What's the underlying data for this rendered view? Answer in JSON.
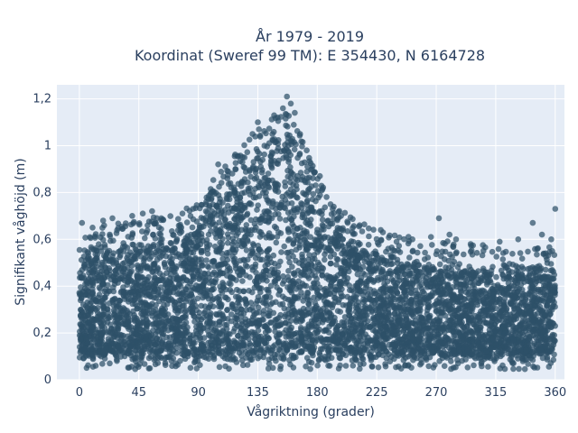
{
  "chart_data": {
    "type": "scatter",
    "title_line1": "År 1979 - 2019",
    "title_line2": "Koordinat (Sweref 99 TM): E 354430, N 6164728",
    "xlabel": "Vågriktning (grader)",
    "ylabel": "Signifikant våghöjd (m)",
    "xlim": [
      -17,
      367
    ],
    "ylim": [
      0,
      1.26
    ],
    "x_ticks": [
      0,
      45,
      90,
      135,
      180,
      225,
      270,
      315,
      360
    ],
    "x_tick_labels": [
      "0",
      "45",
      "90",
      "135",
      "180",
      "225",
      "270",
      "315",
      "360"
    ],
    "y_ticks": [
      0,
      0.2,
      0.4,
      0.6,
      0.8,
      1.0,
      1.2
    ],
    "y_tick_labels": [
      "0",
      "0,2",
      "0,4",
      "0,6",
      "0,8",
      "1",
      "1,2"
    ],
    "grid": true,
    "colors": {
      "marker": "#2e5068",
      "plot_bg": "#e5ecf6",
      "grid": "#ffffff"
    },
    "envelope": [
      [
        0,
        0.52
      ],
      [
        20,
        0.55
      ],
      [
        45,
        0.56
      ],
      [
        70,
        0.6
      ],
      [
        90,
        0.65
      ],
      [
        110,
        0.8
      ],
      [
        135,
        0.95
      ],
      [
        155,
        1.05
      ],
      [
        165,
        0.95
      ],
      [
        180,
        0.75
      ],
      [
        200,
        0.6
      ],
      [
        225,
        0.52
      ],
      [
        270,
        0.48
      ],
      [
        315,
        0.45
      ],
      [
        360,
        0.45
      ]
    ],
    "outliers": [
      [
        2,
        0.67
      ],
      [
        10,
        0.65
      ],
      [
        18,
        0.68
      ],
      [
        25,
        0.69
      ],
      [
        40,
        0.7
      ],
      [
        48,
        0.71
      ],
      [
        55,
        0.72
      ],
      [
        62,
        0.69
      ],
      [
        78,
        0.71
      ],
      [
        86,
        0.73
      ],
      [
        96,
        0.76
      ],
      [
        100,
        0.8
      ],
      [
        105,
        0.92
      ],
      [
        112,
        0.86
      ],
      [
        118,
        0.9
      ],
      [
        125,
        0.95
      ],
      [
        131,
        1.05
      ],
      [
        135,
        1.1
      ],
      [
        140,
        1.0
      ],
      [
        146,
        1.05
      ],
      [
        150,
        1.12
      ],
      [
        154,
        1.16
      ],
      [
        157,
        1.21
      ],
      [
        160,
        1.18
      ],
      [
        163,
        1.14
      ],
      [
        167,
        1.05
      ],
      [
        172,
        0.98
      ],
      [
        176,
        0.9
      ],
      [
        182,
        0.87
      ],
      [
        190,
        0.75
      ],
      [
        198,
        0.7
      ],
      [
        203,
        0.67
      ],
      [
        212,
        0.66
      ],
      [
        228,
        0.64
      ],
      [
        240,
        0.59
      ],
      [
        252,
        0.6
      ],
      [
        266,
        0.61
      ],
      [
        272,
        0.69
      ],
      [
        280,
        0.62
      ],
      [
        285,
        0.6
      ],
      [
        296,
        0.58
      ],
      [
        318,
        0.59
      ],
      [
        332,
        0.6
      ],
      [
        343,
        0.67
      ],
      [
        350,
        0.62
      ],
      [
        357,
        0.6
      ],
      [
        360,
        0.73
      ]
    ]
  }
}
